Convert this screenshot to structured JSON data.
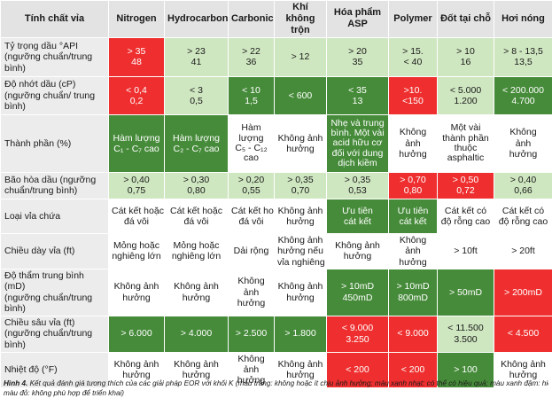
{
  "headers": [
    "Tính chất vỉa",
    "Nitrogen",
    "Hydrocarbon",
    "Carbonic",
    "Khí không trộn",
    "Hóa phẩm ASP",
    "Polymer",
    "Đốt tại chỗ",
    "Hơi nóng"
  ],
  "rows": [
    {
      "label": [
        "Tỷ trọng dầu °API",
        "(ngưỡng chuẩn/trung",
        "bình)"
      ],
      "cells": [
        {
          "lines": [
            "> 35",
            "48"
          ],
          "color": "red"
        },
        {
          "lines": [
            "> 23",
            "41"
          ],
          "color": "light"
        },
        {
          "lines": [
            "> 22",
            "36"
          ],
          "color": "light"
        },
        {
          "lines": [
            "> 12"
          ],
          "color": "light"
        },
        {
          "lines": [
            "> 20",
            "35"
          ],
          "color": "light"
        },
        {
          "lines": [
            "> 15.",
            "< 40"
          ],
          "color": "light"
        },
        {
          "lines": [
            "> 10",
            "16"
          ],
          "color": "light"
        },
        {
          "lines": [
            "> 8 - 13,5",
            "13,5"
          ],
          "color": "light"
        }
      ]
    },
    {
      "label": [
        "Độ nhớt dầu (cP)",
        "(ngưỡng chuẩn/ trung",
        "bình)"
      ],
      "cells": [
        {
          "lines": [
            "< 0,4",
            "0,2"
          ],
          "color": "red"
        },
        {
          "lines": [
            "< 3",
            "0,5"
          ],
          "color": "light"
        },
        {
          "lines": [
            "< 10",
            "1,5"
          ],
          "color": "dark"
        },
        {
          "lines": [
            "< 600"
          ],
          "color": "dark"
        },
        {
          "lines": [
            "< 35",
            "13"
          ],
          "color": "dark"
        },
        {
          "lines": [
            ">10.",
            "<150"
          ],
          "color": "red"
        },
        {
          "lines": [
            "< 5.000",
            "1.200"
          ],
          "color": "light"
        },
        {
          "lines": [
            "< 200.000",
            "4.700"
          ],
          "color": "dark"
        }
      ]
    },
    {
      "label": [
        "Thành phần (%)"
      ],
      "cells": [
        {
          "lines": [
            "Hàm lượng",
            "C₁ - C₇ cao"
          ],
          "color": "dark"
        },
        {
          "lines": [
            "Hàm lượng",
            "C₂ - C₇ cao"
          ],
          "color": "dark"
        },
        {
          "lines": [
            "Hàm",
            "lượng",
            "C₅ - C₁₂",
            "cao"
          ],
          "color": "white"
        },
        {
          "lines": [
            "Không ảnh",
            "hưởng"
          ],
          "color": "white"
        },
        {
          "lines": [
            "Nhẹ và trung",
            "bình. Một vài",
            "acid hữu cơ",
            "đối với dung",
            "dịch kiềm"
          ],
          "color": "dark"
        },
        {
          "lines": [
            "Không",
            "ảnh",
            "hưởng"
          ],
          "color": "white"
        },
        {
          "lines": [
            "Một vài",
            "thành phần",
            "thuộc",
            "asphaltic"
          ],
          "color": "white"
        },
        {
          "lines": [
            "Không",
            "ảnh",
            "hưởng"
          ],
          "color": "white"
        }
      ]
    },
    {
      "label": [
        "Bão hòa dầu (ngưỡng",
        "chuẩn/trung bình)"
      ],
      "cells": [
        {
          "lines": [
            "> 0,40",
            "0,75"
          ],
          "color": "light"
        },
        {
          "lines": [
            "> 0,30",
            "0,80"
          ],
          "color": "light"
        },
        {
          "lines": [
            "> 0,20",
            "0,55"
          ],
          "color": "light"
        },
        {
          "lines": [
            "> 0,35",
            "0,70"
          ],
          "color": "light"
        },
        {
          "lines": [
            "> 0,35",
            "0,53"
          ],
          "color": "light"
        },
        {
          "lines": [
            "> 0,70",
            "0,80"
          ],
          "color": "red"
        },
        {
          "lines": [
            "> 0,50",
            "0,72"
          ],
          "color": "red"
        },
        {
          "lines": [
            "> 0,40",
            "0,66"
          ],
          "color": "light"
        }
      ]
    },
    {
      "label": [
        "Loại vỉa chứa"
      ],
      "cells": [
        {
          "lines": [
            "Cát kết hoặc",
            "đá vôi"
          ],
          "color": "white"
        },
        {
          "lines": [
            "Cát kết hoặc",
            "đá vôi"
          ],
          "color": "white"
        },
        {
          "lines": [
            "Cát kết hoặc",
            "đá vôi"
          ],
          "color": "white"
        },
        {
          "lines": [
            "Không ảnh",
            "hưởng"
          ],
          "color": "white"
        },
        {
          "lines": [
            "Ưu tiên",
            "cát kết"
          ],
          "color": "dark"
        },
        {
          "lines": [
            "Ưu tiên",
            "cát kết"
          ],
          "color": "dark"
        },
        {
          "lines": [
            "Cát kết có",
            "độ rỗng cao"
          ],
          "color": "white"
        },
        {
          "lines": [
            "Cát kết có",
            "độ rỗng cao"
          ],
          "color": "white"
        }
      ]
    },
    {
      "label": [
        "Chiều  dày vỉa (ft)"
      ],
      "cells": [
        {
          "lines": [
            "Mỏng hoặc",
            "nghiêng lớn"
          ],
          "color": "white"
        },
        {
          "lines": [
            "Mỏng hoặc",
            "nghiêng lớn"
          ],
          "color": "white"
        },
        {
          "lines": [
            "Dải rộng"
          ],
          "color": "white"
        },
        {
          "lines": [
            "Không ảnh",
            "hưởng nếu",
            "vỉa nghiêng"
          ],
          "color": "white"
        },
        {
          "lines": [
            "Không ảnh",
            "hưởng"
          ],
          "color": "white"
        },
        {
          "lines": [
            "Không",
            "ảnh",
            "hưởng"
          ],
          "color": "white"
        },
        {
          "lines": [
            "> 10ft"
          ],
          "color": "white"
        },
        {
          "lines": [
            "> 20ft"
          ],
          "color": "white"
        }
      ]
    },
    {
      "label": [
        "Độ thẩm trung bình (mD)",
        "(ngưỡng chuẩn/trung",
        "bình)"
      ],
      "cells": [
        {
          "lines": [
            "Không ảnh",
            "hưởng"
          ],
          "color": "white"
        },
        {
          "lines": [
            "Không ảnh",
            "hưởng"
          ],
          "color": "white"
        },
        {
          "lines": [
            "Không",
            "ảnh",
            "hưởng"
          ],
          "color": "white"
        },
        {
          "lines": [
            "Không ảnh",
            "hưởng"
          ],
          "color": "white"
        },
        {
          "lines": [
            "> 10mD",
            "450mD"
          ],
          "color": "dark"
        },
        {
          "lines": [
            "> 10mD",
            "800mD"
          ],
          "color": "dark"
        },
        {
          "lines": [
            "> 50mD"
          ],
          "color": "dark"
        },
        {
          "lines": [
            "> 200mD"
          ],
          "color": "red"
        }
      ]
    },
    {
      "label": [
        "Chiều sâu vỉa (ft)",
        "(ngưỡng chuẩn/trung",
        "bình)"
      ],
      "cells": [
        {
          "lines": [
            "> 6.000"
          ],
          "color": "dark"
        },
        {
          "lines": [
            "> 4.000"
          ],
          "color": "dark"
        },
        {
          "lines": [
            "> 2.500"
          ],
          "color": "dark"
        },
        {
          "lines": [
            "> 1.800"
          ],
          "color": "dark"
        },
        {
          "lines": [
            "< 9.000",
            "3.250"
          ],
          "color": "red"
        },
        {
          "lines": [
            "< 9.000"
          ],
          "color": "red"
        },
        {
          "lines": [
            "< 11.500",
            "3.500"
          ],
          "color": "light"
        },
        {
          "lines": [
            "< 4.500"
          ],
          "color": "red"
        }
      ]
    },
    {
      "label": [
        "Nhiệt độ (°F)"
      ],
      "cells": [
        {
          "lines": [
            "Không ảnh",
            "hưởng"
          ],
          "color": "white"
        },
        {
          "lines": [
            "Không ảnh",
            "hưởng"
          ],
          "color": "white"
        },
        {
          "lines": [
            "Không",
            "ảnh",
            "hưởng"
          ],
          "color": "white"
        },
        {
          "lines": [
            "Không ảnh",
            "hưởng"
          ],
          "color": "white"
        },
        {
          "lines": [
            "< 200"
          ],
          "color": "red"
        },
        {
          "lines": [
            "< 200"
          ],
          "color": "red"
        },
        {
          "lines": [
            "> 100"
          ],
          "color": "dark"
        },
        {
          "lines": [
            "Không ảnh",
            "hưởng"
          ],
          "color": "white"
        }
      ]
    }
  ],
  "caption": {
    "label": "Hình 4.",
    "line1": "Kết quả đánh giá tương thích của các giải pháp EOR với khối K (màu trắng: không hoặc ít chịu ảnh hưởng; màu xanh nhạt: có thể có hiệu quả; màu xanh đậm: hiệu quả tốt;",
    "line2": "màu đỏ: không phù hợp để triển khai)"
  }
}
